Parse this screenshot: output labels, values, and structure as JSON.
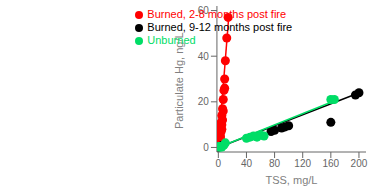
{
  "chart_data": {
    "type": "scatter",
    "xlabel": "TSS, mg/L",
    "ylabel": "Particulate Hg, ng/L",
    "xlim": [
      -2,
      210
    ],
    "ylim": [
      -2,
      62
    ],
    "xticks": [
      0,
      40,
      80,
      120,
      160,
      200
    ],
    "yticks": [
      0,
      20,
      40,
      60
    ],
    "grid": false,
    "legend": "upper center",
    "series": [
      {
        "name": "Burned, 2-8 months post fire",
        "type": "scatter",
        "color": "#ff0000",
        "x": [
          0.5,
          1,
          1.5,
          2,
          2.5,
          3,
          3.5,
          4,
          5,
          6,
          7,
          8,
          9,
          10,
          12,
          14,
          1.5,
          2,
          3,
          4,
          5,
          6,
          7,
          3,
          5,
          9
        ],
        "values": [
          1.5,
          3,
          4,
          5,
          7,
          9,
          10,
          11,
          14,
          17,
          21,
          25,
          30,
          38,
          48,
          57,
          2,
          3,
          5,
          7,
          10,
          12,
          16,
          4,
          8,
          26
        ]
      },
      {
        "type": "line",
        "color": "#ff0000",
        "x": [
          0,
          15
        ],
        "values": [
          0,
          58
        ]
      },
      {
        "name": "Burned, 9-12 months post fire",
        "type": "scatter",
        "color": "#000000",
        "x": [
          0.5,
          1,
          2,
          3,
          5,
          75,
          80,
          90,
          95,
          100,
          160,
          195,
          200
        ],
        "values": [
          0.2,
          0.3,
          0.4,
          0.5,
          0.8,
          7,
          7.5,
          8.5,
          9,
          9.5,
          11,
          23,
          24
        ]
      },
      {
        "type": "line",
        "color": "#000000",
        "x": [
          0,
          205
        ],
        "values": [
          0,
          24.5
        ]
      },
      {
        "name": "Unburned",
        "type": "scatter",
        "color": "#00dd66",
        "x": [
          0.5,
          1,
          2,
          3,
          5,
          8,
          10,
          40,
          45,
          50,
          55,
          60,
          65,
          160,
          165
        ],
        "values": [
          0.3,
          0.4,
          0.3,
          0.2,
          0.2,
          1,
          2,
          4,
          4.5,
          5,
          4.5,
          5.5,
          5,
          21,
          21
        ]
      },
      {
        "type": "line",
        "color": "#00dd66",
        "x": [
          0,
          170
        ],
        "values": [
          0,
          21
        ]
      }
    ]
  }
}
